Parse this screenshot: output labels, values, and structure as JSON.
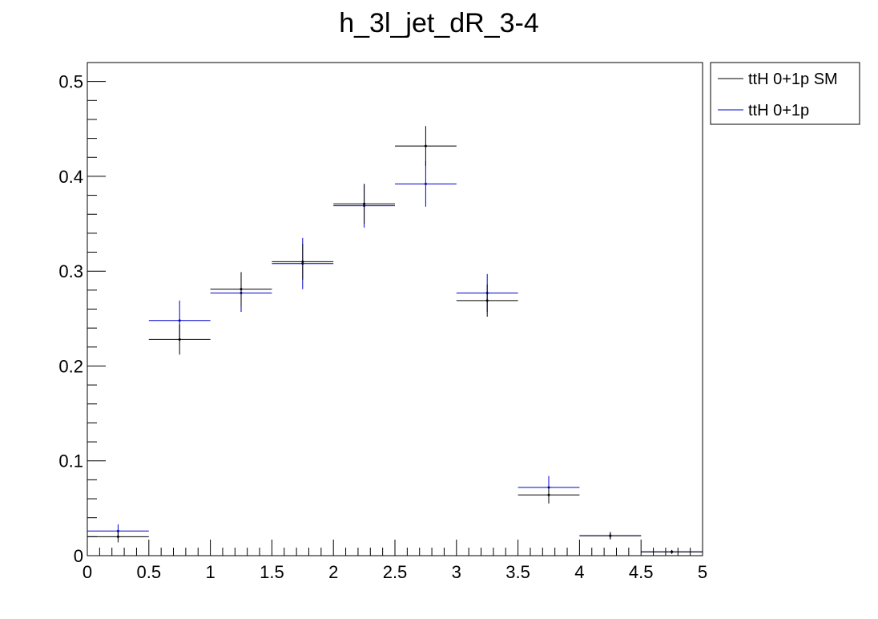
{
  "chart_data": {
    "type": "histogram",
    "title": "h_3l_jet_dR_3-4",
    "xlabel": "",
    "ylabel": "",
    "xlim": [
      0,
      5
    ],
    "ylim": [
      0,
      0.52
    ],
    "x_ticks": [
      "0",
      "0.5",
      "1",
      "1.5",
      "2",
      "2.5",
      "3",
      "3.5",
      "4",
      "4.5",
      "5"
    ],
    "y_ticks": [
      "0",
      "0.1",
      "0.2",
      "0.3",
      "0.4",
      "0.5"
    ],
    "bin_edges": [
      0,
      0.5,
      1,
      1.5,
      2,
      2.5,
      3,
      3.5,
      4,
      4.5,
      5
    ],
    "grid": false,
    "legend_position": "top-right, outside plot",
    "series": [
      {
        "name": "ttH 0+1p SM",
        "color": "#000000",
        "values": [
          0.02,
          0.228,
          0.281,
          0.31,
          0.371,
          0.432,
          0.269,
          0.064,
          0.021,
          0.004
        ],
        "errors": [
          0.006,
          0.016,
          0.018,
          0.019,
          0.021,
          0.021,
          0.017,
          0.009,
          0.004,
          0.002
        ]
      },
      {
        "name": "ttH 0+1p",
        "color": "#0000cc",
        "values": [
          0.026,
          0.248,
          0.277,
          0.308,
          0.369,
          0.392,
          0.277,
          0.072,
          0.021,
          0.004
        ],
        "errors": [
          0.007,
          0.021,
          0.02,
          0.027,
          0.023,
          0.024,
          0.02,
          0.012,
          0.003,
          0.002
        ]
      }
    ]
  }
}
